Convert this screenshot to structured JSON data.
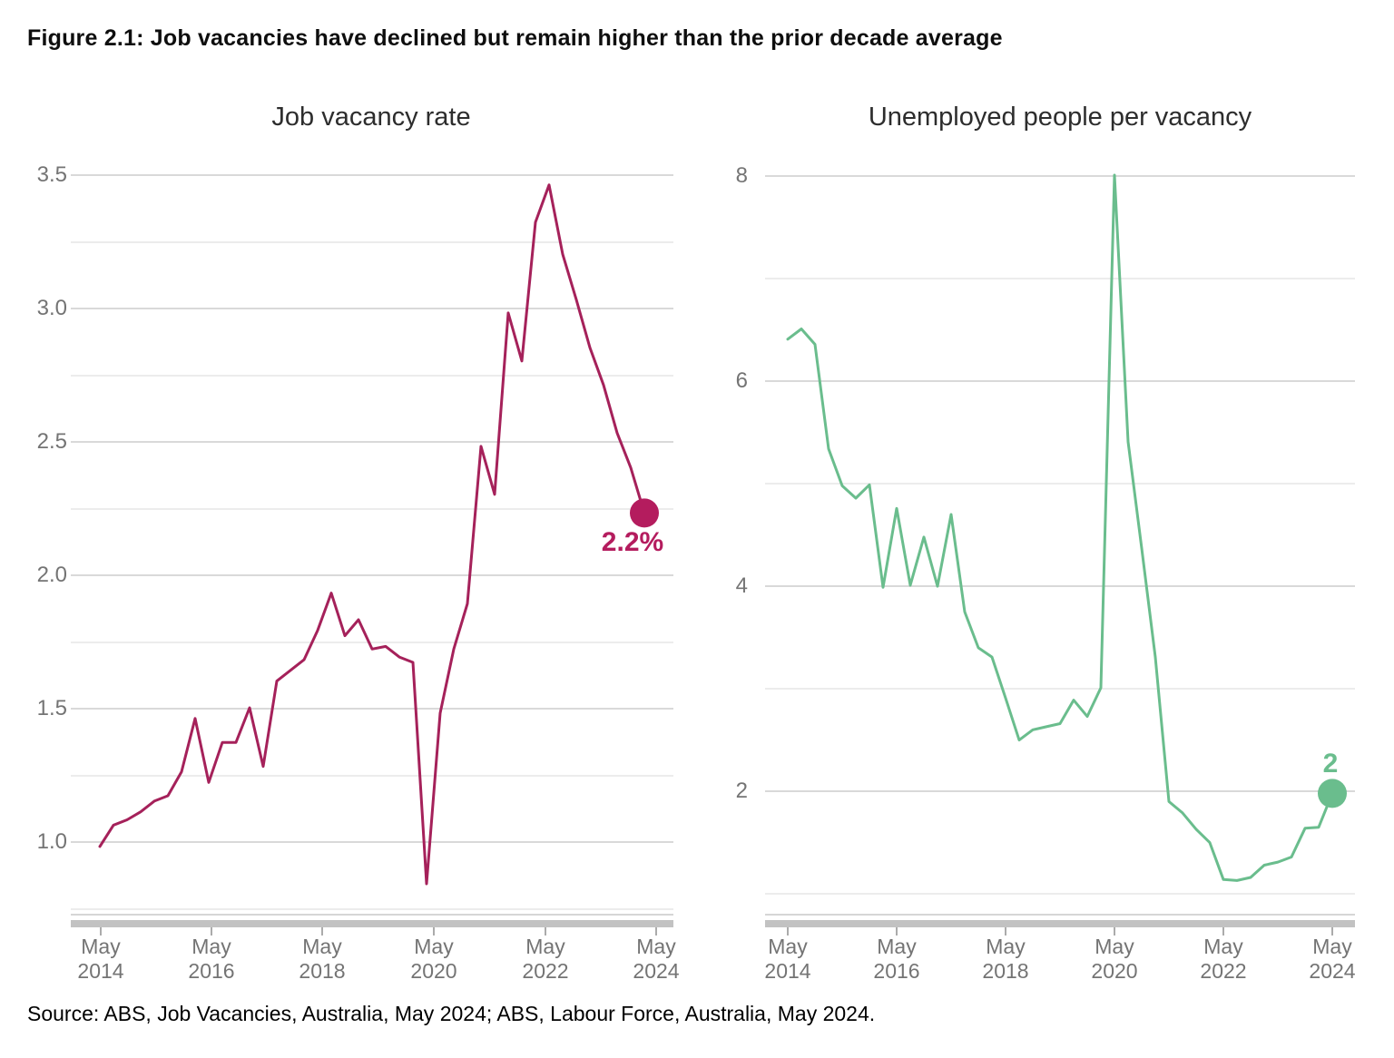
{
  "figure_title": "Figure 2.1: Job vacancies have declined but remain higher than the prior decade average",
  "source": "Source: ABS, Job Vacancies, Australia, May 2024; ABS, Labour Force, Australia, May 2024.",
  "colors": {
    "left_line": "#a5215a",
    "left_accent": "#b41c5e",
    "right_line": "#6abd8d",
    "grid_major": "#d9d9d9",
    "grid_minor": "#ececec",
    "axis_band": "#c2c2c2",
    "axis_tick": "#ababab",
    "axis_border": "#d6d6d6",
    "tick_text": "#747474"
  },
  "chart_data": [
    {
      "type": "line",
      "title": "Job vacancy rate",
      "series_name": "Job vacancy rate (%)",
      "end_label": "2.2%",
      "end_value": 2.2,
      "ylim": [
        0.75,
        3.5
      ],
      "gridline_step": 0.25,
      "major_label_step": 0.5,
      "y_tick_labels": [
        "1.0",
        "1.5",
        "2.0",
        "2.5",
        "3.0",
        "3.5"
      ],
      "x_tick_labels": [
        "May 2014",
        "May 2016",
        "May 2018",
        "May 2020",
        "May 2022",
        "May 2024"
      ],
      "x": [
        "May 2014",
        "Aug 2014",
        "Nov 2014",
        "Feb 2015",
        "May 2015",
        "Aug 2015",
        "Nov 2015",
        "Feb 2016",
        "May 2016",
        "Aug 2016",
        "Nov 2016",
        "Feb 2017",
        "May 2017",
        "Aug 2017",
        "Nov 2017",
        "Feb 2018",
        "May 2018",
        "Aug 2018",
        "Nov 2018",
        "Feb 2019",
        "May 2019",
        "Aug 2019",
        "Nov 2019",
        "Feb 2020",
        "May 2020",
        "Aug 2020",
        "Nov 2020",
        "Feb 2021",
        "May 2021",
        "Aug 2021",
        "Nov 2021",
        "Feb 2022",
        "May 2022",
        "Aug 2022",
        "Nov 2022",
        "Feb 2023",
        "May 2023",
        "Aug 2023",
        "Nov 2023",
        "Feb 2024",
        "May 2024"
      ],
      "values": [
        0.98,
        1.06,
        1.08,
        1.11,
        1.15,
        1.17,
        1.26,
        1.46,
        1.22,
        1.37,
        1.37,
        1.5,
        1.28,
        1.6,
        1.64,
        1.68,
        1.79,
        1.93,
        1.77,
        1.83,
        1.72,
        1.73,
        1.69,
        1.67,
        0.84,
        1.48,
        1.72,
        1.89,
        2.48,
        2.3,
        2.98,
        2.8,
        3.32,
        3.46,
        3.2,
        3.03,
        2.85,
        2.71,
        2.53,
        2.4,
        2.23
      ]
    },
    {
      "type": "line",
      "title": "Unemployed people per vacancy",
      "series_name": "Unemployed people per vacancy",
      "end_label": "2",
      "end_value": 2,
      "ylim": [
        1,
        8
      ],
      "gridline_step": 1,
      "major_label_step": 2,
      "y_tick_labels": [
        "2",
        "4",
        "6",
        "8"
      ],
      "x_tick_labels": [
        "May 2014",
        "May 2016",
        "May 2018",
        "May 2020",
        "May 2022",
        "May 2024"
      ],
      "x": [
        "May 2014",
        "Aug 2014",
        "Nov 2014",
        "Feb 2015",
        "May 2015",
        "Aug 2015",
        "Nov 2015",
        "Feb 2016",
        "May 2016",
        "Aug 2016",
        "Nov 2016",
        "Feb 2017",
        "May 2017",
        "Aug 2017",
        "Nov 2017",
        "Feb 2018",
        "May 2018",
        "Aug 2018",
        "Nov 2018",
        "Feb 2019",
        "May 2019",
        "Aug 2019",
        "Nov 2019",
        "Feb 2020",
        "May 2020",
        "Aug 2020",
        "Nov 2020",
        "Feb 2021",
        "May 2021",
        "Aug 2021",
        "Nov 2021",
        "Feb 2022",
        "May 2022",
        "Aug 2022",
        "Nov 2022",
        "Feb 2023",
        "May 2023",
        "Aug 2023",
        "Nov 2023",
        "Feb 2024",
        "May 2024"
      ],
      "values": [
        6.4,
        6.5,
        6.35,
        5.33,
        4.97,
        4.85,
        4.98,
        3.98,
        4.75,
        4.0,
        4.47,
        3.99,
        4.69,
        3.74,
        3.39,
        3.3,
        2.9,
        2.49,
        2.59,
        2.62,
        2.65,
        2.88,
        2.72,
        3.0,
        8.0,
        5.4,
        4.36,
        3.3,
        1.89,
        1.78,
        1.62,
        1.49,
        1.13,
        1.12,
        1.15,
        1.27,
        1.3,
        1.35,
        1.63,
        1.64,
        1.97
      ]
    }
  ]
}
